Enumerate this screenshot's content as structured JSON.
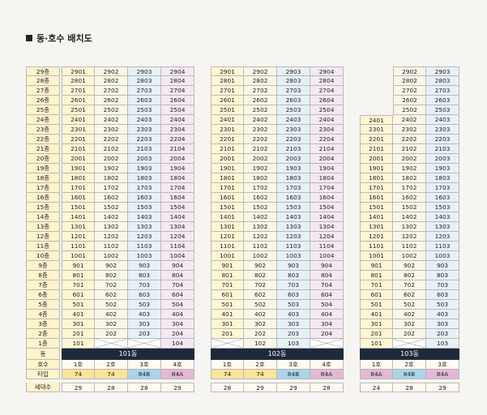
{
  "title": "동·호수 배치도",
  "floor_labels": [
    "29층",
    "28층",
    "27층",
    "26층",
    "25층",
    "24층",
    "23층",
    "22층",
    "21층",
    "20층",
    "19층",
    "18층",
    "17층",
    "16층",
    "15층",
    "14층",
    "13층",
    "12층",
    "11층",
    "10층",
    "9층",
    "8층",
    "7층",
    "6층",
    "5층",
    "4층",
    "3층",
    "2층",
    "1층"
  ],
  "row_labels": {
    "dong": "동",
    "ho": "호수",
    "type": "타입",
    "households": "세대수"
  },
  "towers": [
    {
      "name": "101동",
      "top_floor": 29,
      "lines": [
        "1",
        "2",
        "3",
        "4"
      ],
      "first_floor_units": [
        "101",
        "",
        "",
        "104"
      ],
      "ho_labels": [
        "1호",
        "2호",
        "3호",
        "4호"
      ],
      "types": [
        "74",
        "74",
        "84B",
        "84A"
      ],
      "households": [
        "29",
        "28",
        "28",
        "29"
      ]
    },
    {
      "name": "102동",
      "top_floor": 29,
      "lines": [
        "1",
        "2",
        "3",
        "4"
      ],
      "first_floor_units": [
        "",
        "102",
        "103",
        ""
      ],
      "ho_labels": [
        "1호",
        "2호",
        "3호",
        "4호"
      ],
      "types": [
        "74",
        "74",
        "84B",
        "84A"
      ],
      "households": [
        "28",
        "29",
        "29",
        "28"
      ]
    },
    {
      "name": "103동",
      "lines": [
        "1",
        "2",
        "3"
      ],
      "line_top_floors": [
        24,
        29,
        29
      ],
      "first_floor_units": [
        "101",
        "",
        "103"
      ],
      "ho_labels": [
        "1호",
        "2호",
        "3호"
      ],
      "types": [
        "84A",
        "84B",
        "84A"
      ],
      "households": [
        "24",
        "28",
        "29"
      ]
    }
  ],
  "colors": {
    "col1": "#fff6d3",
    "col2": "#fbf7e6",
    "col3": "#e6f0f7",
    "col4": "#f4e8f1",
    "type_74": "#fbe39a",
    "type_84B": "#a9d4ea",
    "type_84A": "#e4b7d6",
    "dong_bar": "#1e2a3c"
  }
}
